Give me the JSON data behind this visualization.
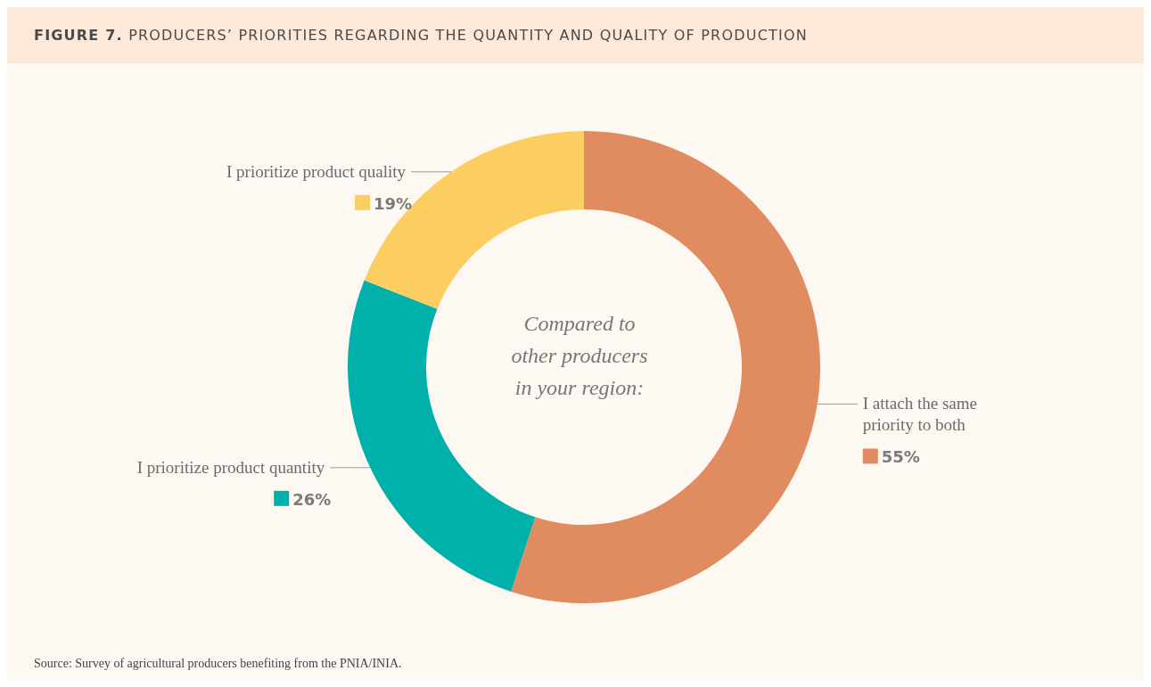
{
  "chart_data": {
    "type": "donut",
    "title": "FIGURE 7. PRODUCERS’ PRIORITIES REGARDING THE QUANTITY AND QUALITY OF PRODUCTION",
    "categories": [
      "I attach the same priority to both",
      "I prioritize product quantity",
      "I prioritize product quality"
    ],
    "values": [
      55,
      26,
      19
    ],
    "value_labels": [
      "55%",
      "26%",
      "19%"
    ],
    "colors": [
      "#e08c60",
      "#00b0aa",
      "#fcce62"
    ],
    "annotations": [
      "Compared to other producers in your region:",
      "Source: Survey of agricultural producers benefiting from the PNIA/INIA."
    ]
  }
}
